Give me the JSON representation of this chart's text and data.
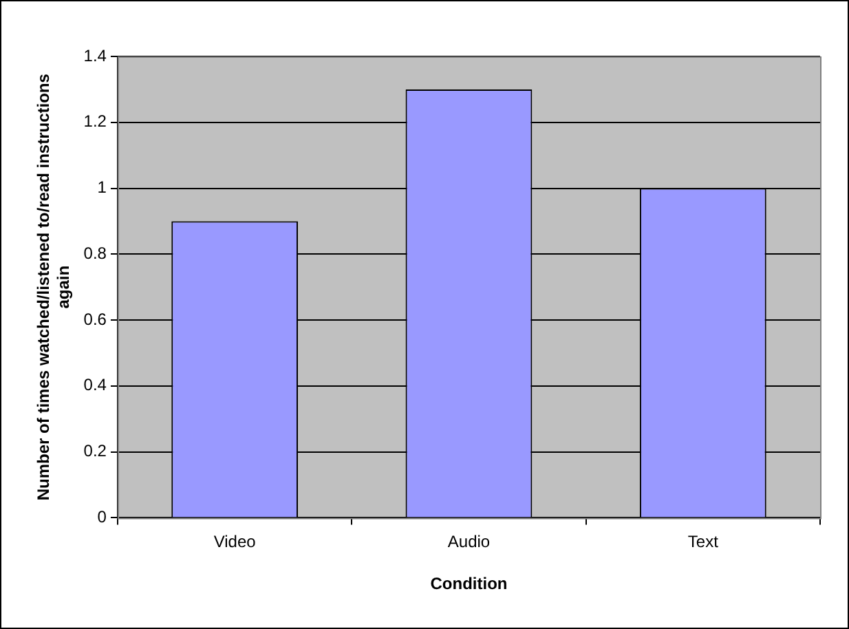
{
  "chart_data": {
    "type": "bar",
    "xlabel": "Condition",
    "ylabel": "Number of times watched/listened to/read instructions again",
    "categories": [
      "Video",
      "Audio",
      "Text"
    ],
    "values": [
      0.9,
      1.3,
      1.0
    ],
    "color": "#9999ff",
    "ylim": [
      0,
      1.4
    ],
    "yticks": [
      0,
      0.2,
      0.4,
      0.6,
      0.8,
      1,
      1.2,
      1.4
    ],
    "grid": "y",
    "legend": false
  }
}
